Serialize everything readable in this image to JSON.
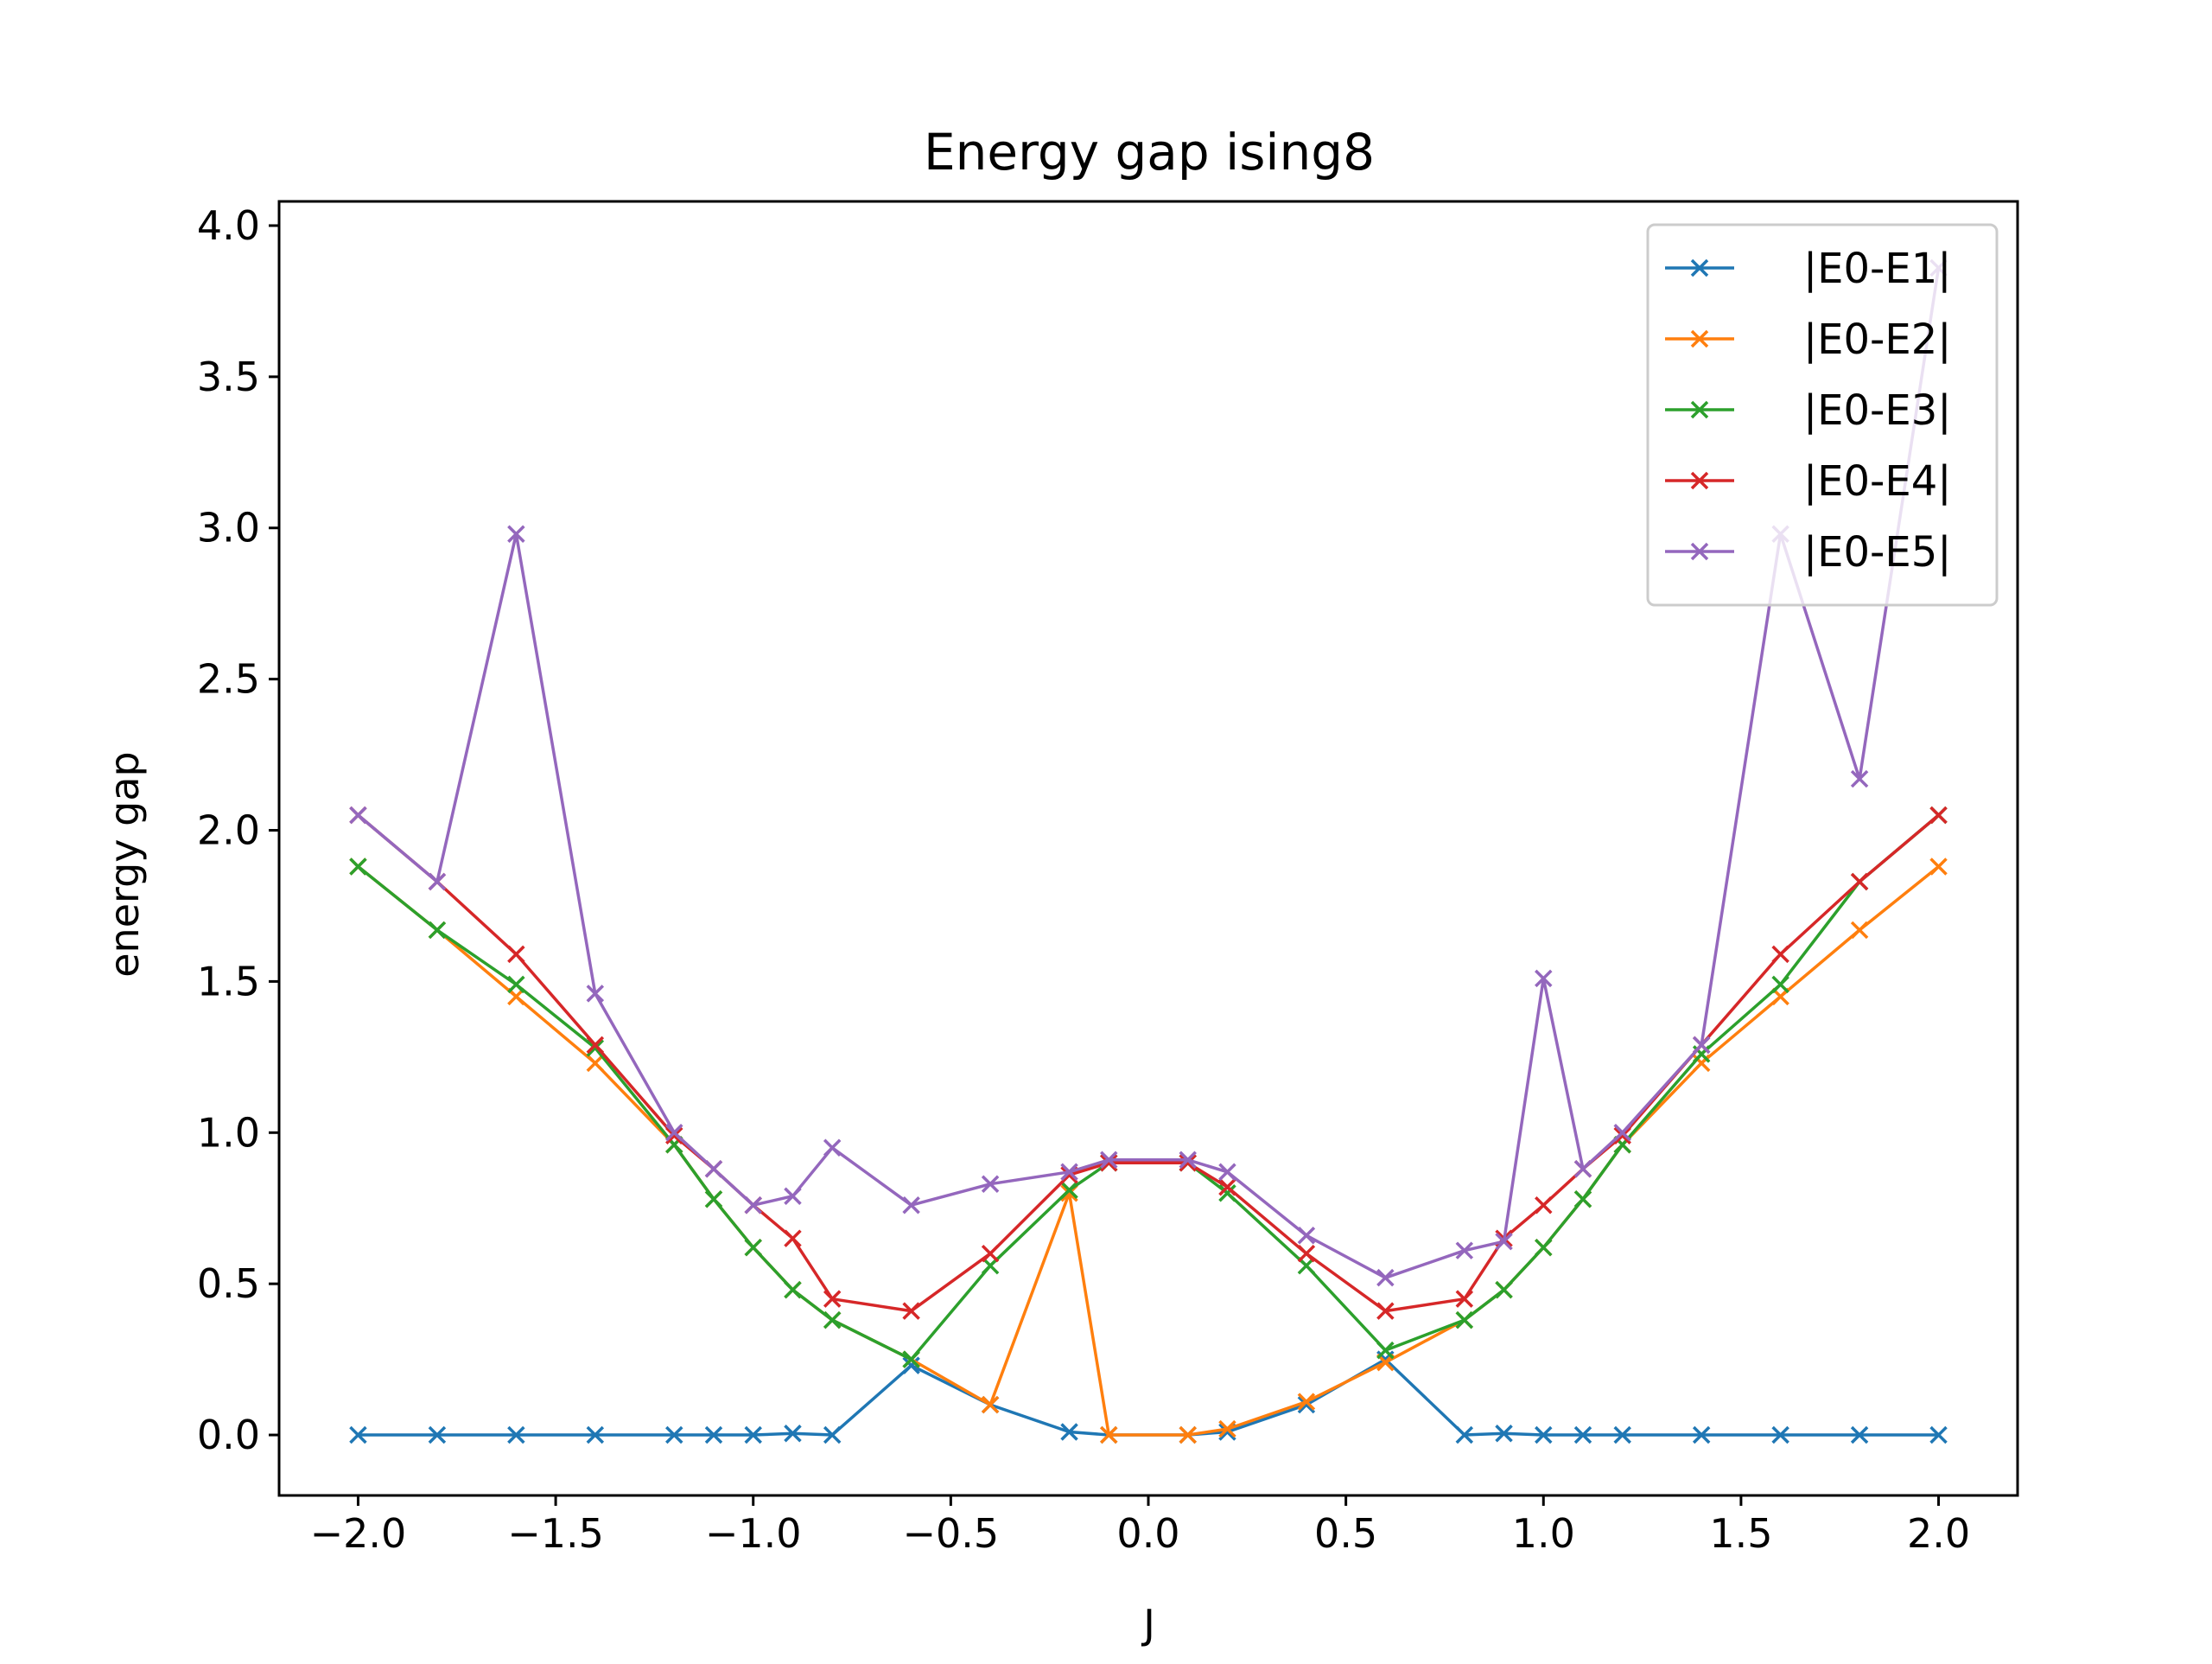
{
  "chart_data": {
    "type": "line",
    "title": "Energy gap ising8",
    "xlabel": "J",
    "ylabel": "energy gap",
    "xlim": [
      -2.2,
      2.2
    ],
    "ylim": [
      -0.2,
      4.08
    ],
    "xticks": [
      -2.0,
      -1.5,
      -1.0,
      -0.5,
      0.0,
      0.5,
      1.0,
      1.5,
      2.0
    ],
    "xtick_labels": [
      "−2.0",
      "−1.5",
      "−1.0",
      "−0.5",
      "0.0",
      "0.5",
      "1.0",
      "1.5",
      "2.0"
    ],
    "yticks": [
      0.0,
      0.5,
      1.0,
      1.5,
      2.0,
      2.5,
      3.0,
      3.5,
      4.0
    ],
    "ytick_labels": [
      "0.0",
      "0.5",
      "1.0",
      "1.5",
      "2.0",
      "2.5",
      "3.0",
      "3.5",
      "4.0"
    ],
    "grid": false,
    "legend_position": "top-right",
    "marker": "x",
    "x": [
      -2.0,
      -1.8,
      -1.6,
      -1.4,
      -1.2,
      -1.1,
      -1.0,
      -0.9,
      -0.8,
      -0.6,
      -0.4,
      -0.2,
      -0.1,
      0.1,
      0.2,
      0.4,
      0.6,
      0.8,
      0.9,
      1.0,
      1.1,
      1.2,
      1.4,
      1.6,
      1.8,
      2.0
    ],
    "series": [
      {
        "name": "|E0-E1|",
        "color": "#1f77b4",
        "values": [
          0.0,
          0.0,
          0.0,
          0.0,
          0.0,
          0.0,
          0.0,
          0.005,
          0.0,
          0.23,
          0.1,
          0.01,
          0.0,
          0.0,
          0.01,
          0.1,
          0.25,
          0.0,
          0.005,
          0.0,
          0.0,
          0.0,
          0.0,
          0.0,
          0.0,
          0.0
        ]
      },
      {
        "name": "|E0-E2|",
        "color": "#ff7f0e",
        "values": [
          1.88,
          1.67,
          1.45,
          1.23,
          0.96,
          0.78,
          0.62,
          0.48,
          0.38,
          0.25,
          0.1,
          0.8,
          0.0,
          0.0,
          0.02,
          0.11,
          0.24,
          0.38,
          0.48,
          0.62,
          0.78,
          0.96,
          1.23,
          1.45,
          1.67,
          1.88
        ]
      },
      {
        "name": "|E0-E3|",
        "color": "#2ca02c",
        "values": [
          1.88,
          1.67,
          1.49,
          1.28,
          0.96,
          0.78,
          0.62,
          0.48,
          0.38,
          0.25,
          0.56,
          0.81,
          0.9,
          0.9,
          0.8,
          0.56,
          0.28,
          0.38,
          0.48,
          0.62,
          0.78,
          0.96,
          1.26,
          1.49,
          1.83,
          2.05
        ]
      },
      {
        "name": "|E0-E4|",
        "color": "#d62728",
        "values": [
          2.05,
          1.83,
          1.59,
          1.29,
          0.99,
          0.88,
          0.76,
          0.65,
          0.45,
          0.41,
          0.6,
          0.86,
          0.9,
          0.9,
          0.82,
          0.6,
          0.41,
          0.45,
          0.65,
          0.76,
          0.88,
          0.99,
          1.29,
          1.59,
          1.83,
          2.05
        ]
      },
      {
        "name": "|E0-E5|",
        "color": "#9467bd",
        "values": [
          2.05,
          1.83,
          2.98,
          1.46,
          1.0,
          0.88,
          0.76,
          0.79,
          0.95,
          0.76,
          0.83,
          0.87,
          0.91,
          0.91,
          0.87,
          0.66,
          0.52,
          0.61,
          0.64,
          1.51,
          0.88,
          1.0,
          1.29,
          2.98,
          2.17,
          3.86
        ]
      }
    ]
  }
}
